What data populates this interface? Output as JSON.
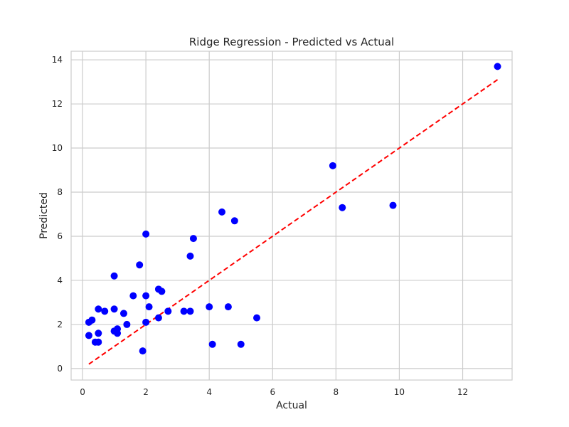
{
  "chart_data": {
    "type": "scatter",
    "title": "Ridge Regression - Predicted vs Actual",
    "xlabel": "Actual",
    "ylabel": "Predicted",
    "xlim": [
      -0.36,
      13.56
    ],
    "ylim": [
      -0.52,
      14.39
    ],
    "xticks": [
      0,
      2,
      4,
      6,
      8,
      10,
      12
    ],
    "yticks": [
      0,
      2,
      4,
      6,
      8,
      10,
      12,
      14
    ],
    "grid": true,
    "colors": {
      "points": "#0000ff",
      "reference_line": "#ff0000",
      "grid": "#cccccc",
      "frame": "#cccccc"
    },
    "reference_line": {
      "x": [
        0.2,
        13.1
      ],
      "y": [
        0.2,
        13.1
      ],
      "style": "dashed"
    },
    "points": [
      {
        "x": 0.2,
        "y": 2.1
      },
      {
        "x": 0.3,
        "y": 2.2
      },
      {
        "x": 0.2,
        "y": 1.5
      },
      {
        "x": 0.5,
        "y": 2.7
      },
      {
        "x": 0.5,
        "y": 1.6
      },
      {
        "x": 0.4,
        "y": 1.2
      },
      {
        "x": 0.5,
        "y": 1.2
      },
      {
        "x": 0.7,
        "y": 2.6
      },
      {
        "x": 1.0,
        "y": 2.7
      },
      {
        "x": 1.0,
        "y": 4.2
      },
      {
        "x": 1.0,
        "y": 1.7
      },
      {
        "x": 1.1,
        "y": 1.8
      },
      {
        "x": 1.1,
        "y": 1.6
      },
      {
        "x": 1.3,
        "y": 2.5
      },
      {
        "x": 1.4,
        "y": 2.0
      },
      {
        "x": 1.6,
        "y": 3.3
      },
      {
        "x": 1.8,
        "y": 4.7
      },
      {
        "x": 1.9,
        "y": 0.8
      },
      {
        "x": 2.0,
        "y": 6.1
      },
      {
        "x": 2.0,
        "y": 3.3
      },
      {
        "x": 2.0,
        "y": 2.1
      },
      {
        "x": 2.1,
        "y": 2.8
      },
      {
        "x": 2.4,
        "y": 3.6
      },
      {
        "x": 2.5,
        "y": 3.5
      },
      {
        "x": 2.4,
        "y": 2.3
      },
      {
        "x": 2.7,
        "y": 2.6
      },
      {
        "x": 3.2,
        "y": 2.6
      },
      {
        "x": 3.4,
        "y": 2.6
      },
      {
        "x": 3.4,
        "y": 5.1
      },
      {
        "x": 3.5,
        "y": 5.9
      },
      {
        "x": 4.0,
        "y": 2.8
      },
      {
        "x": 4.1,
        "y": 1.1
      },
      {
        "x": 4.4,
        "y": 7.1
      },
      {
        "x": 4.6,
        "y": 2.8
      },
      {
        "x": 4.8,
        "y": 6.7
      },
      {
        "x": 5.0,
        "y": 1.1
      },
      {
        "x": 5.5,
        "y": 2.3
      },
      {
        "x": 7.9,
        "y": 9.2
      },
      {
        "x": 8.2,
        "y": 7.3
      },
      {
        "x": 9.8,
        "y": 7.4
      },
      {
        "x": 13.1,
        "y": 13.7
      }
    ]
  }
}
